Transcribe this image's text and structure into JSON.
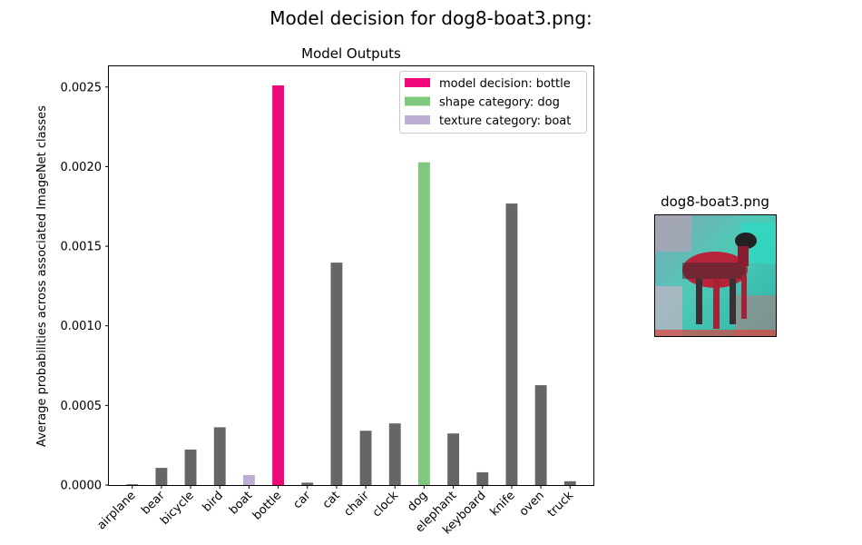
{
  "figure": {
    "suptitle": "Model decision for dog8-boat3.png:"
  },
  "colors": {
    "decision": "#f0077a",
    "shape": "#7fc97f",
    "texture": "#beaed4",
    "other": "#666666"
  },
  "chart_data": {
    "type": "bar",
    "title": "Model Outputs",
    "xlabel": "",
    "ylabel": "Average probabilities across associated ImageNet classes",
    "ylim": [
      0,
      0.00263
    ],
    "yticks": [
      0.0,
      0.0005,
      0.001,
      0.0015,
      0.002,
      0.0025
    ],
    "ytick_labels": [
      "0.0000",
      "0.0005",
      "0.0010",
      "0.0015",
      "0.0020",
      "0.0025"
    ],
    "categories": [
      "airplane",
      "bear",
      "bicycle",
      "bird",
      "boat",
      "bottle",
      "car",
      "cat",
      "chair",
      "clock",
      "dog",
      "elephant",
      "keyboard",
      "knife",
      "oven",
      "truck"
    ],
    "values": [
      5e-06,
      0.000108,
      0.000223,
      0.000363,
      6.3e-05,
      0.00251,
      1.5e-05,
      0.001397,
      0.000341,
      0.000387,
      0.002027,
      0.000324,
      8e-05,
      0.001768,
      0.000627,
      2.4e-05
    ],
    "roles": [
      "other",
      "other",
      "other",
      "other",
      "texture",
      "decision",
      "other",
      "other",
      "other",
      "other",
      "shape",
      "other",
      "other",
      "other",
      "other",
      "other"
    ],
    "legend": [
      {
        "role": "decision",
        "label": "model decision: bottle"
      },
      {
        "role": "shape",
        "label": "shape category: dog"
      },
      {
        "role": "texture",
        "label": "texture category: boat"
      }
    ],
    "legend_position": "top-right",
    "grid": false
  },
  "thumbnail": {
    "title": "dog8-boat3.png"
  }
}
